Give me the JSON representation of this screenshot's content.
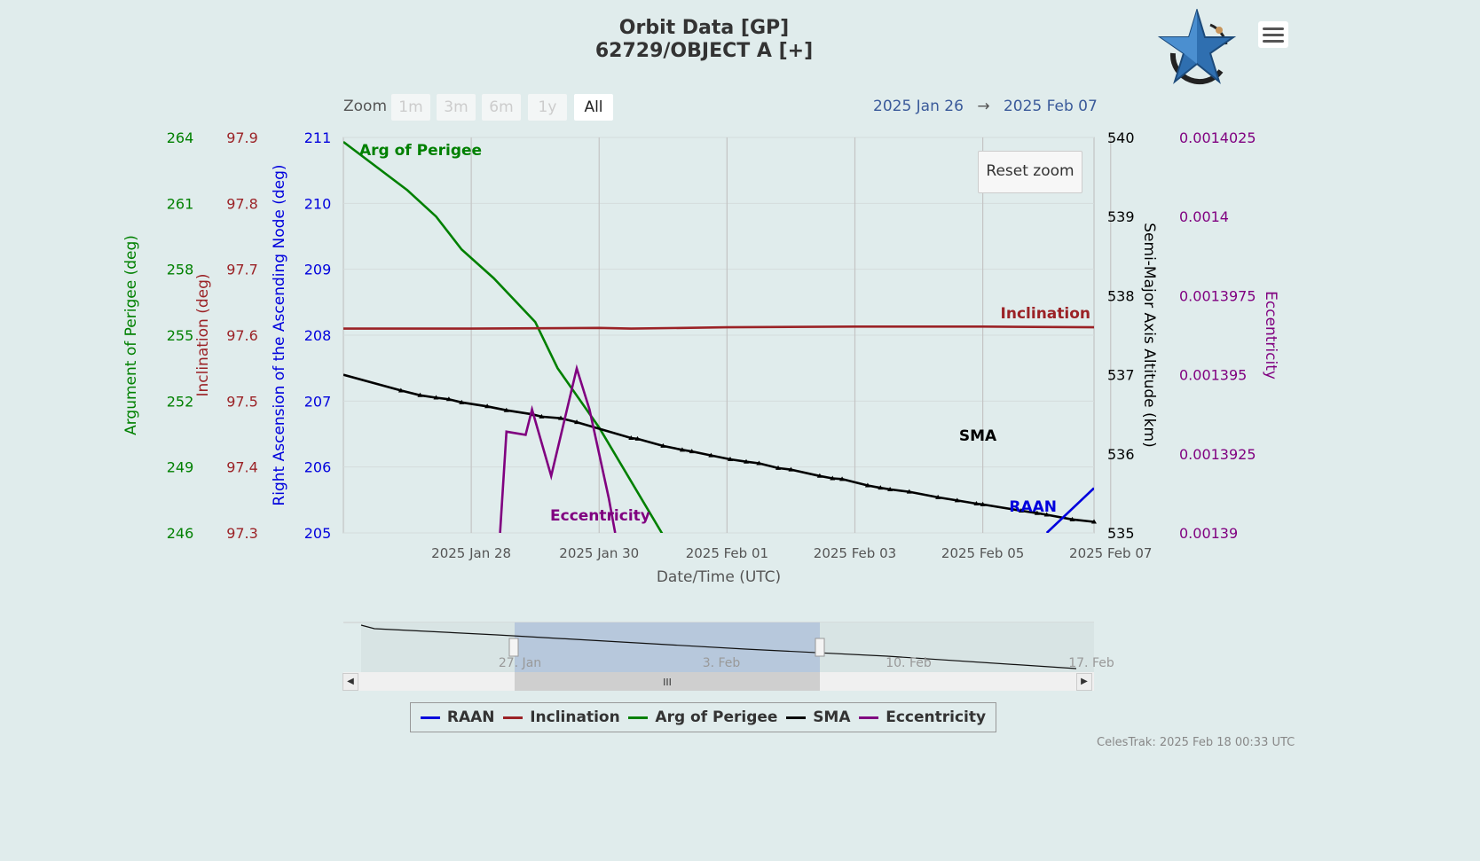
{
  "header": {
    "title_line1": "Orbit Data [GP]",
    "title_line2": "62729/OBJECT A [+]",
    "menu_icon": "hamburger-menu-icon",
    "logo_icon": "celestrak-star-logo"
  },
  "zoom": {
    "label": "Zoom",
    "buttons": [
      "1m",
      "3m",
      "6m",
      "1y",
      "All"
    ],
    "active": "All"
  },
  "range": {
    "from": "2025 Jan 26",
    "arrow": "→",
    "to": "2025 Feb 07"
  },
  "reset_zoom_label": "Reset zoom",
  "navigator": {
    "labels": [
      "27. Jan",
      "3. Feb",
      "10. Feb",
      "17. Feb"
    ],
    "handle_grip": "III"
  },
  "legend": [
    {
      "name": "RAAN",
      "color": "#0000dd"
    },
    {
      "name": "Inclination",
      "color": "#9b2226"
    },
    {
      "name": "Arg of Perigee",
      "color": "#008000"
    },
    {
      "name": "SMA",
      "color": "#000000"
    },
    {
      "name": "Eccentricity",
      "color": "#800080"
    }
  ],
  "credit": "CelesTrak: 2025 Feb 18 00:33 UTC",
  "chart_data": {
    "type": "line",
    "title": "Orbit Data [GP]",
    "subtitle": "62729/OBJECT A [+]",
    "xlabel": "Date/Time (UTC)",
    "x_ticks": [
      "2025 Jan 28",
      "2025 Jan 30",
      "2025 Feb 01",
      "2025 Feb 03",
      "2025 Feb 05",
      "2025 Feb 07"
    ],
    "xlim_days": [
      -1.0,
      10.74
    ],
    "grid": true,
    "axes": [
      {
        "id": "aop",
        "label": "Argument of Perigee (deg)",
        "side": "left",
        "color": "#008000",
        "ticks": [
          "246",
          "249",
          "252",
          "255",
          "258",
          "261",
          "264"
        ],
        "range": [
          246,
          264
        ]
      },
      {
        "id": "inc",
        "label": "Inclination (deg)",
        "side": "left",
        "color": "#9b2226",
        "ticks": [
          "97.3",
          "97.4",
          "97.5",
          "97.6",
          "97.7",
          "97.8",
          "97.9"
        ],
        "range": [
          97.3,
          97.9
        ]
      },
      {
        "id": "raan",
        "label": "Right Ascension of the Ascending Node (deg)",
        "side": "left",
        "color": "#0000dd",
        "ticks": [
          "205",
          "206",
          "207",
          "208",
          "209",
          "210",
          "211"
        ],
        "range": [
          205,
          211
        ]
      },
      {
        "id": "sma",
        "label": "Semi-Major Axis Altitude (km)",
        "side": "right",
        "color": "#000000",
        "ticks": [
          "535",
          "536",
          "537",
          "538",
          "539",
          "540"
        ],
        "range": [
          535,
          540
        ]
      },
      {
        "id": "ecc",
        "label": "Eccentricity",
        "side": "right",
        "color": "#800080",
        "ticks": [
          "0.00139",
          "0.0013925",
          "0.001395",
          "0.0013975",
          "0.0014",
          "0.0014025"
        ],
        "range": [
          0.00139,
          0.0014025
        ]
      }
    ],
    "series": [
      {
        "name": "Arg of Perigee",
        "axis": "aop",
        "color": "#008000",
        "label_pos": "start",
        "x": [
          -1.0,
          0.0,
          0.45,
          0.85,
          1.35,
          2.0,
          2.35,
          3.0,
          4.0
        ],
        "y": [
          263.8,
          261.6,
          260.4,
          258.9,
          257.6,
          255.6,
          253.5,
          250.8,
          245.9
        ]
      },
      {
        "name": "Inclination",
        "axis": "inc",
        "color": "#9b2226",
        "label_pos": "end",
        "x": [
          -1.0,
          1.0,
          3.0,
          3.5,
          5.0,
          7.0,
          9.0,
          10.74
        ],
        "y": [
          97.61,
          97.61,
          97.611,
          97.61,
          97.612,
          97.613,
          97.613,
          97.612
        ]
      },
      {
        "name": "SMA",
        "axis": "sma",
        "color": "#000000",
        "label_pos": "middle",
        "x": [
          -1.0,
          -0.1,
          0.2,
          0.45,
          0.65,
          0.85,
          1.25,
          1.55,
          1.95,
          2.1,
          2.4,
          2.65,
          3.5,
          3.6,
          4.0,
          4.3,
          4.45,
          4.75,
          5.05,
          5.3,
          5.5,
          5.8,
          6.0,
          6.45,
          6.65,
          6.8,
          7.2,
          7.4,
          7.55,
          7.85,
          8.3,
          8.6,
          8.9,
          9.0,
          9.6,
          9.85,
          10.0,
          10.4,
          10.74
        ],
        "y": [
          537.0,
          536.8,
          536.74,
          536.71,
          536.69,
          536.65,
          536.6,
          536.55,
          536.5,
          536.47,
          536.45,
          536.4,
          536.2,
          536.19,
          536.1,
          536.05,
          536.03,
          535.98,
          535.93,
          535.9,
          535.88,
          535.82,
          535.8,
          535.72,
          535.69,
          535.68,
          535.6,
          535.57,
          535.55,
          535.52,
          535.45,
          535.41,
          535.37,
          535.36,
          535.28,
          535.25,
          535.23,
          535.17,
          535.14
        ]
      },
      {
        "name": "Eccentricity",
        "axis": "ecc",
        "color": "#800080",
        "label_pos": "end",
        "x": [
          1.45,
          1.55,
          1.85,
          1.95,
          2.25,
          2.65,
          2.85,
          3.15,
          3.25
        ],
        "y": [
          0.00139,
          0.0013932,
          0.0013931,
          0.0013939,
          0.0013918,
          0.0013952,
          0.0013939,
          0.0013911,
          0.00139
        ]
      },
      {
        "name": "RAAN",
        "axis": "raan",
        "color": "#0000dd",
        "label_pos": "end",
        "x": [
          10.0,
          10.74
        ],
        "y": [
          205.0,
          205.68
        ]
      }
    ]
  }
}
